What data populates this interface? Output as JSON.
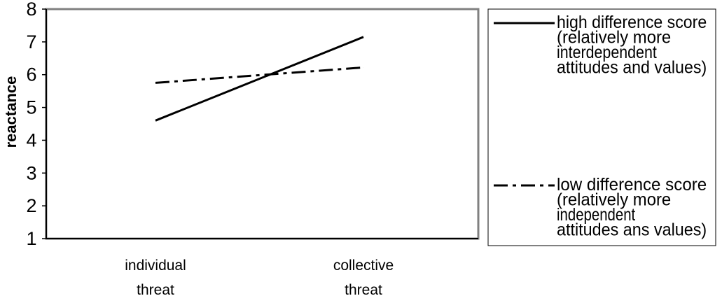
{
  "chart_data": {
    "type": "line",
    "categories": [
      "individual threat",
      "collective threat"
    ],
    "category_lines": [
      [
        "individual",
        "threat"
      ],
      [
        "collective",
        "threat"
      ]
    ],
    "ylabel": "reactance",
    "xlabel": "",
    "title": "",
    "ylim": [
      1,
      8
    ],
    "yticks": [
      1,
      2,
      3,
      4,
      5,
      6,
      7,
      8
    ],
    "grid": false,
    "legend_position": "right",
    "series": [
      {
        "name": "high difference score (relatively more interdependent attitudes and values)",
        "legend_lines": [
          "high difference score",
          "(relatively more",
          "interdependent",
          "attitudes and values)"
        ],
        "style": "solid",
        "color": "#000000",
        "values": [
          4.6,
          7.15
        ]
      },
      {
        "name": "low difference score (relatively more independent attitudes ans values)",
        "legend_lines": [
          "low  difference score",
          "(relatively more",
          "independent",
          "attitudes ans values)"
        ],
        "style": "dash-dot",
        "color": "#000000",
        "values": [
          5.75,
          6.22
        ]
      }
    ]
  }
}
